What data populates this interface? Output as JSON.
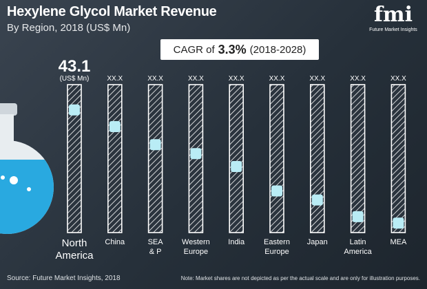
{
  "header": {
    "title": "Hexylene Glycol Market Revenue",
    "subtitle": "By Region, 2018 (US$ Mn)"
  },
  "logo": {
    "mark": "fmi",
    "name": "Future Market Insights"
  },
  "cagr": {
    "prefix": "CAGR of",
    "value": "3.3%",
    "period": "(2018-2028)"
  },
  "chart_data": {
    "type": "bar",
    "categories": [
      "North America",
      "China",
      "SEA & P",
      "Western Europe",
      "India",
      "Eastern Europe",
      "Japan",
      "Latin America",
      "MEA"
    ],
    "category_lines": [
      [
        "North",
        "America"
      ],
      [
        "China"
      ],
      [
        "SEA",
        "& P"
      ],
      [
        "Western",
        "Europe"
      ],
      [
        "India"
      ],
      [
        "Eastern",
        "Europe"
      ],
      [
        "Japan"
      ],
      [
        "Latin",
        "America"
      ],
      [
        "MEA"
      ]
    ],
    "value_labels": [
      "43.1",
      "XX.X",
      "XX.X",
      "XX.X",
      "XX.X",
      "XX.X",
      "XX.X",
      "XX.X",
      "XX.X"
    ],
    "unit_label": "(US$ Mn)",
    "relative_levels": [
      0.9,
      0.77,
      0.63,
      0.56,
      0.46,
      0.27,
      0.2,
      0.07,
      0.02
    ],
    "colors": {
      "marker": "#b9ecf5",
      "frame": "#ffffff",
      "hatch": "#ffffff",
      "liquid": "#29a9e0"
    }
  },
  "footer": {
    "source": "Source: Future Market Insights, 2018",
    "note": "Note: Market shares are not depicted as per the actual scale and are only for illustration purposes."
  }
}
